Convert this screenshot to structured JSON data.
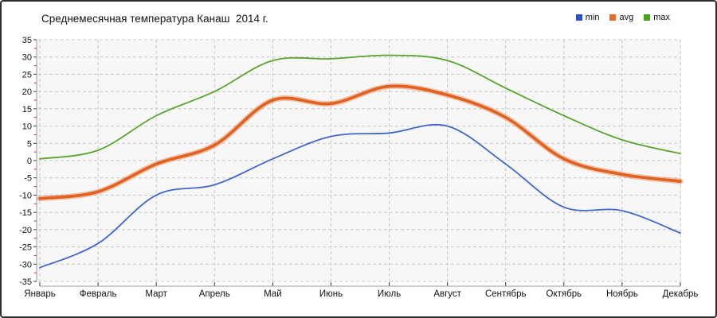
{
  "title": "Среднемесячная температура Канаш  2014 г.",
  "legend": [
    {
      "label": "min",
      "color": "#2a52d0"
    },
    {
      "label": "avg",
      "color": "#e86c28"
    },
    {
      "label": "max",
      "color": "#47a519"
    }
  ],
  "chart_data": {
    "type": "line",
    "title": "Среднемесячная температура Канаш  2014 г.",
    "categories": [
      "Январь",
      "Февраль",
      "Март",
      "Апрель",
      "Май",
      "Июнь",
      "Июль",
      "Август",
      "Сентябрь",
      "Октябрь",
      "Ноябрь",
      "Декабрь"
    ],
    "series": [
      {
        "name": "min",
        "color": "#4166cc",
        "thick": false,
        "values": [
          -31,
          -24,
          -10,
          -7,
          0.5,
          7,
          8,
          10,
          -1,
          -13.5,
          -14.5,
          -21
        ]
      },
      {
        "name": "avg",
        "color": "#e2611f",
        "thick": true,
        "values": [
          -11,
          -9,
          -1,
          4.5,
          17.5,
          16.5,
          21.5,
          19,
          12.5,
          0.5,
          -4,
          -6
        ]
      },
      {
        "name": "max",
        "color": "#5aa432",
        "thick": false,
        "values": [
          0.5,
          3,
          13,
          20,
          29,
          29.5,
          30.5,
          29,
          21,
          13,
          6,
          2
        ]
      }
    ],
    "ylim": [
      -35,
      35
    ],
    "ytick_step": 5,
    "yminor_step": 2.5,
    "grid": "dashed",
    "legend_position": "top-right"
  },
  "colors": {
    "plot_bg": "#f7f7f7",
    "grid": "#c9c9c9",
    "axis": "#9a9a9a",
    "tick": "#333333",
    "minor_tick": "#c42222",
    "text": "#111111"
  }
}
